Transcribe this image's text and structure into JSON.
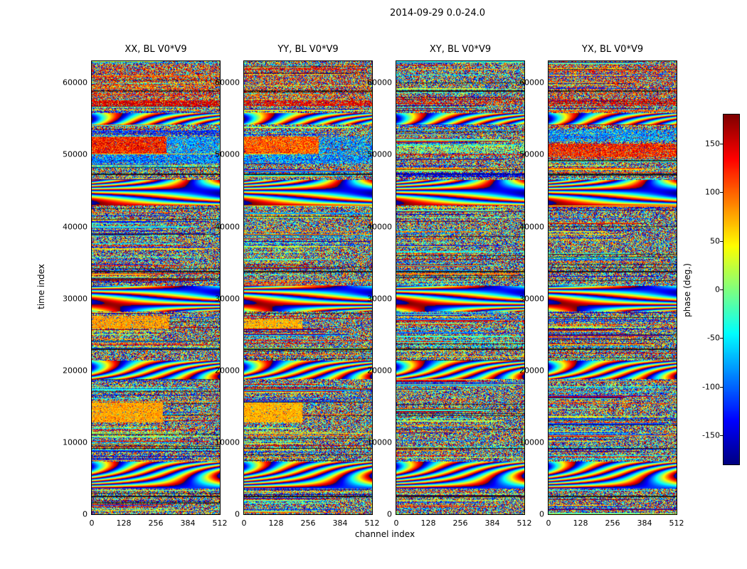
{
  "chart_data": {
    "type": "heatmap",
    "title": "2014-09-29 0.0-24.0",
    "xlabel": "channel index",
    "ylabel": "time index",
    "xlim": [
      0,
      512
    ],
    "ylim": [
      0,
      63000
    ],
    "xticks": [
      0,
      128,
      256,
      384,
      512
    ],
    "yticks": [
      0,
      10000,
      20000,
      30000,
      40000,
      50000,
      60000
    ],
    "colormap": "jet",
    "seed": 20140929,
    "colorbar": {
      "label": "phase (deg.)",
      "range": [
        -180,
        180
      ],
      "ticks": [
        150,
        100,
        50,
        0,
        -50,
        -100,
        -150
      ]
    },
    "panels": [
      {
        "id": "XX",
        "title": "XX, BL V0*V9",
        "features": [
          {
            "y": [
              50200,
              52600
            ],
            "x": [
              0,
              0.58
            ],
            "phase": [
              85,
              170
            ]
          },
          {
            "y": [
              50200,
              52600
            ],
            "x": [
              0.58,
              1
            ],
            "phase": [
              -120,
              -40
            ],
            "d": 0.7
          },
          {
            "y": [
              48800,
              50100
            ],
            "x": [
              0,
              1
            ],
            "phase": [
              -140,
              -40
            ],
            "d": 0.75
          },
          {
            "y": [
              52700,
              53500
            ],
            "x": [
              0,
              1
            ],
            "phase": [
              -150,
              -90
            ],
            "d": 0.6
          },
          {
            "y": [
              12800,
              15600
            ],
            "x": [
              0,
              0.55
            ],
            "phase": [
              55,
              100
            ]
          },
          {
            "y": [
              25900,
              27600
            ],
            "x": [
              0,
              0.6
            ],
            "phase": [
              58,
              100
            ],
            "d": 0.85
          },
          {
            "y": [
              56800,
              57600
            ],
            "x": [
              0,
              1
            ],
            "phase": [
              120,
              175
            ],
            "d": 0.8
          },
          {
            "y": [
              57700,
              62600
            ],
            "x": [
              0,
              1
            ],
            "phase": [
              80,
              170
            ],
            "d": 0.3
          }
        ]
      },
      {
        "id": "YY",
        "title": "YY, BL V0*V9",
        "features": [
          {
            "y": [
              50200,
              52600
            ],
            "x": [
              0,
              0.58
            ],
            "phase": [
              60,
              145
            ]
          },
          {
            "y": [
              50200,
              52600
            ],
            "x": [
              0.58,
              1
            ],
            "phase": [
              -120,
              -40
            ],
            "d": 0.6
          },
          {
            "y": [
              48800,
              50100
            ],
            "x": [
              0,
              1
            ],
            "phase": [
              -130,
              -30
            ],
            "d": 0.7
          },
          {
            "y": [
              12800,
              15600
            ],
            "x": [
              0,
              0.45
            ],
            "phase": [
              52,
              92
            ]
          },
          {
            "y": [
              25900,
              27100
            ],
            "x": [
              0,
              0.45
            ],
            "phase": [
              52,
              92
            ],
            "d": 0.85
          },
          {
            "y": [
              56800,
              57600
            ],
            "x": [
              0,
              1
            ],
            "phase": [
              110,
              170
            ],
            "d": 0.7
          },
          {
            "y": [
              57700,
              62600
            ],
            "x": [
              0,
              1
            ],
            "phase": [
              80,
              160
            ],
            "d": 0.25
          }
        ]
      },
      {
        "id": "XY",
        "title": "XY, BL V0*V9",
        "features": [
          {
            "y": [
              50300,
              51400
            ],
            "x": [
              0,
              1
            ],
            "phase": [
              -60,
              60
            ],
            "d": 0.5
          },
          {
            "y": [
              46900,
              47500
            ],
            "x": [
              0,
              1
            ],
            "phase": [
              -170,
              -120
            ],
            "d": 0.7
          },
          {
            "y": [
              57000,
              58000
            ],
            "x": [
              0,
              1
            ],
            "phase": [
              100,
              170
            ],
            "d": 0.4
          }
        ]
      },
      {
        "id": "YX",
        "title": "YX, BL V0*V9",
        "features": [
          {
            "y": [
              49700,
              51600
            ],
            "x": [
              0,
              1
            ],
            "phase": [
              85,
              165
            ],
            "d": 0.85
          },
          {
            "y": [
              51900,
              53600
            ],
            "x": [
              0,
              1
            ],
            "phase": [
              -120,
              -40
            ],
            "d": 0.6
          },
          {
            "y": [
              56800,
              57800
            ],
            "x": [
              0,
              1
            ],
            "phase": [
              110,
              170
            ],
            "d": 0.6
          },
          {
            "y": [
              57900,
              62600
            ],
            "x": [
              0,
              1
            ],
            "phase": [
              80,
              160
            ],
            "d": 0.25
          }
        ]
      }
    ],
    "wave_bands": [
      {
        "y": [
          28200,
          31800
        ]
      },
      {
        "y": [
          3600,
          7400
        ]
      },
      {
        "y": [
          18800,
          21400
        ]
      },
      {
        "y": [
          43000,
          46500
        ]
      },
      {
        "y": [
          54200,
          55800
        ]
      }
    ],
    "dark_rows": [
      47300,
      33800,
      23000,
      9200,
      58900,
      2500
    ],
    "description": "Waterfall plots of interferometric visibility phase (deg., jet colormap, -180 to 180) versus channel index (0-512) and time index (0-63000) for the four polarization products XX, YY, XY, YX of baseline V0*V9 on 2014-09-29 0.0-24.0; content is noise-like phase with horizontal coherent bands (yellow/orange blocks near time 13000-15000 and 26000-27500, strong red/orange banding near 49000-52500, dark horizontal lines) and chevron-like interference patterns near time 30000."
  }
}
